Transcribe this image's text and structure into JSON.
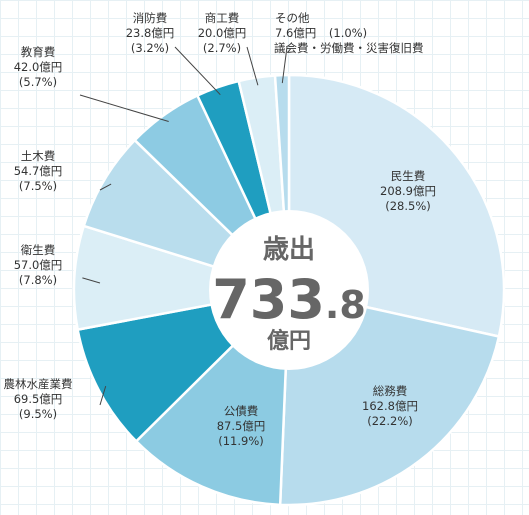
{
  "chart_data": {
    "type": "pie",
    "center": {
      "title": "歳出",
      "total_int": "733",
      "total_dec": ".8",
      "unit": "億円"
    },
    "slices": [
      {
        "name": "民生費",
        "value": 208.9,
        "value_text": "208.9億円",
        "percent_text": "(28.5%)",
        "color": "#d6eaf5"
      },
      {
        "name": "総務費",
        "value": 162.8,
        "value_text": "162.8億円",
        "percent_text": "(22.2%)",
        "color": "#b7dced"
      },
      {
        "name": "公債費",
        "value": 87.5,
        "value_text": "87.5億円",
        "percent_text": "(11.9%)",
        "color": "#8ccbe2"
      },
      {
        "name": "農林水産業費",
        "value": 69.5,
        "value_text": "69.5億円",
        "percent_text": "(9.5%)",
        "color": "#1f9ec0"
      },
      {
        "name": "衛生費",
        "value": 57.0,
        "value_text": "57.0億円",
        "percent_text": "(7.8%)",
        "color": "#dbeef6"
      },
      {
        "name": "土木費",
        "value": 54.7,
        "value_text": "54.7億円",
        "percent_text": "(7.5%)",
        "color": "#b9dded"
      },
      {
        "name": "教育費",
        "value": 42.0,
        "value_text": "42.0億円",
        "percent_text": "(5.7%)",
        "color": "#8dcbe3"
      },
      {
        "name": "消防費",
        "value": 23.8,
        "value_text": "23.8億円",
        "percent_text": "(3.2%)",
        "color": "#1f9ec0"
      },
      {
        "name": "商工費",
        "value": 20.0,
        "value_text": "20.0億円",
        "percent_text": "(2.7%)",
        "color": "#dbeef6"
      },
      {
        "name": "その他",
        "value": 7.6,
        "value_text": "7.6億円",
        "percent_text": "(1.0%)",
        "note": "議会費・労働費・災害復旧費",
        "color": "#b7dced"
      }
    ]
  }
}
